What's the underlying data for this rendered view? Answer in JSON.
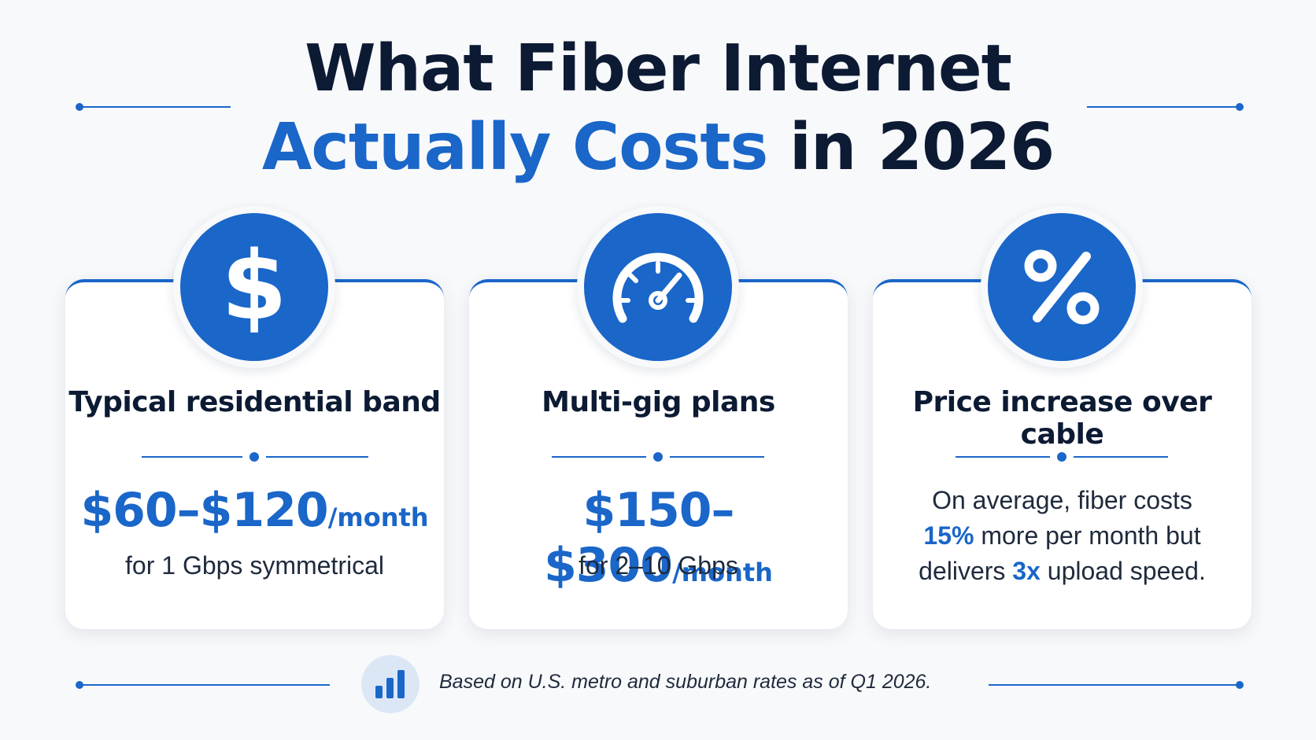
{
  "title": {
    "line1": "What Fiber Internet",
    "line2_accent": "Actually Costs",
    "line2_rest": " in 2026"
  },
  "cards": [
    {
      "icon": "dollar-icon",
      "title": "Typical residential band",
      "price": "$60–$120",
      "unit": "/month",
      "sub": "for 1 Gbps symmetrical"
    },
    {
      "icon": "speedometer-icon",
      "title": "Multi-gig plans",
      "price": "$150–$300",
      "unit": "/month",
      "sub": "for 2–10 Gbps"
    },
    {
      "icon": "percent-icon",
      "title": "Price increase over cable",
      "desc": {
        "p1": "On average, fiber costs",
        "hl1": "15%",
        "p2": " more per month but",
        "p3": "delivers ",
        "hl2": "3x",
        "p4": " upload speed."
      }
    }
  ],
  "footer": {
    "icon": "bar-chart-icon",
    "text": "Based on U.S. metro and suburban rates as of Q1 2026."
  },
  "colors": {
    "accent": "#1a66c9",
    "dark": "#0c1a33",
    "background": "#f8f9fb"
  }
}
